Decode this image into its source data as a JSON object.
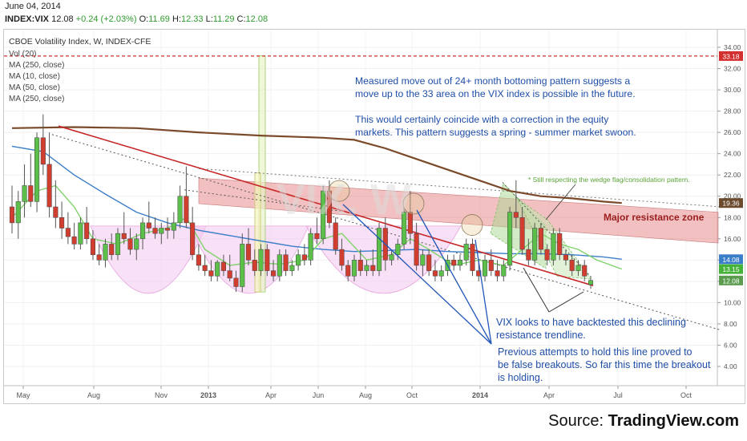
{
  "header": {
    "date": "June 04, 2014",
    "symbol": "INDEX:VIX",
    "last": "12.08",
    "change": "+0.24 (+2.03%)",
    "open_label": "O:",
    "open": "11.69",
    "high_label": "H:",
    "high": "12.33",
    "low_label": "L:",
    "low": "11.29",
    "close_label": "C:",
    "close": "12.08"
  },
  "legend": {
    "title": "CBOE Volatility Index, W, INDEX-CFE",
    "items": [
      "Vol (20)",
      "MA (250, close)",
      "MA (10, close)",
      "MA (50, close)",
      "MA (250, close)"
    ]
  },
  "annotations": {
    "measured_move": [
      "Measured move out of 24+ month bottoming pattern suggests a",
      "move up to the 33 area on the VIX index is possible in the future.",
      "",
      "This would certainly coincide with a correction in the equity",
      "markets. This pattern suggests a spring - summer market swoon."
    ],
    "wedge_note": "* Still respecting the wedge flag/consolidation pattern.",
    "resistance_zone": "Major resistance zone",
    "backtest": [
      "VIX looks to have backtested this declining",
      "resistance trendline."
    ],
    "previous_attempts": [
      "Previous attempts to hold this line proved to",
      "be false breakouts. So far this time the breakout",
      "is holding."
    ]
  },
  "source": {
    "prefix": "Source: ",
    "brand": "TradingView.com"
  },
  "colors": {
    "bull": "#5bbf4a",
    "bear": "#d13d2f",
    "ma250": "#7b4a2a",
    "ma50": "#3a7dc9",
    "ma10": "#7fd36a",
    "trendline": "#c62828",
    "zone": "#e88c8c",
    "annotation_text": "#1f4ea8",
    "arrow": "#2156b8"
  },
  "chart_data": {
    "type": "candlestick",
    "title": "CBOE Volatility Index, W, INDEX-CFE",
    "y_ticks": [
      "34.00",
      "32.00",
      "30.00",
      "28.00",
      "26.00",
      "24.00",
      "22.00",
      "20.00",
      "18.00",
      "16.00",
      "14.00",
      "12.00",
      "10.00",
      "8.00",
      "6.00",
      "4.00"
    ],
    "x_ticks": [
      "May",
      "Aug",
      "Nov",
      "2013",
      "Apr",
      "Jun",
      "Aug",
      "Oct",
      "2014",
      "Apr",
      "Jul",
      "Oct"
    ],
    "ylim": [
      2.5,
      35
    ],
    "price_labels": [
      {
        "value": 33.18,
        "text": "33.18",
        "color": "#d32f2f"
      },
      {
        "value": 19.36,
        "text": "19.36",
        "color": "#6b4a2e"
      },
      {
        "value": 14.08,
        "text": "14.08",
        "color": "#3a7dc9"
      },
      {
        "value": 13.15,
        "text": "13.15",
        "color": "#45b339"
      },
      {
        "value": 12.08,
        "text": "12.08",
        "color": "#5a9b4d"
      }
    ],
    "reference_line": {
      "value": 33.18,
      "style": "dashed",
      "color": "#d32f2f"
    },
    "candles": [
      {
        "o": 19.0,
        "h": 21.0,
        "l": 16.5,
        "c": 17.5
      },
      {
        "o": 17.5,
        "h": 20.5,
        "l": 16.0,
        "c": 19.5
      },
      {
        "o": 19.5,
        "h": 23.0,
        "l": 18.0,
        "c": 21.0
      },
      {
        "o": 21.0,
        "h": 24.0,
        "l": 19.0,
        "c": 19.5
      },
      {
        "o": 19.5,
        "h": 26.0,
        "l": 18.5,
        "c": 25.5
      },
      {
        "o": 25.5,
        "h": 27.7,
        "l": 22.0,
        "c": 23.0
      },
      {
        "o": 23.0,
        "h": 26.0,
        "l": 18.0,
        "c": 19.0
      },
      {
        "o": 19.0,
        "h": 21.5,
        "l": 17.0,
        "c": 18.0
      },
      {
        "o": 18.0,
        "h": 19.5,
        "l": 16.0,
        "c": 17.0
      },
      {
        "o": 17.0,
        "h": 18.5,
        "l": 15.5,
        "c": 16.2
      },
      {
        "o": 16.2,
        "h": 17.5,
        "l": 15.0,
        "c": 15.5
      },
      {
        "o": 15.5,
        "h": 18.0,
        "l": 15.0,
        "c": 17.5
      },
      {
        "o": 17.5,
        "h": 19.0,
        "l": 15.5,
        "c": 16.0
      },
      {
        "o": 16.0,
        "h": 16.8,
        "l": 14.0,
        "c": 14.5
      },
      {
        "o": 14.5,
        "h": 15.5,
        "l": 13.5,
        "c": 14.0
      },
      {
        "o": 14.0,
        "h": 16.0,
        "l": 13.3,
        "c": 15.5
      },
      {
        "o": 15.5,
        "h": 16.5,
        "l": 14.0,
        "c": 14.5
      },
      {
        "o": 14.5,
        "h": 17.0,
        "l": 14.0,
        "c": 16.5
      },
      {
        "o": 16.5,
        "h": 18.5,
        "l": 15.5,
        "c": 16.0
      },
      {
        "o": 16.0,
        "h": 17.0,
        "l": 14.5,
        "c": 15.0
      },
      {
        "o": 15.0,
        "h": 16.5,
        "l": 14.0,
        "c": 16.0
      },
      {
        "o": 16.0,
        "h": 18.0,
        "l": 15.0,
        "c": 17.5
      },
      {
        "o": 17.5,
        "h": 19.5,
        "l": 16.5,
        "c": 17.0
      },
      {
        "o": 17.0,
        "h": 18.0,
        "l": 16.0,
        "c": 16.5
      },
      {
        "o": 16.5,
        "h": 17.5,
        "l": 15.5,
        "c": 17.0
      },
      {
        "o": 17.0,
        "h": 18.0,
        "l": 16.0,
        "c": 16.8
      },
      {
        "o": 16.8,
        "h": 18.5,
        "l": 16.0,
        "c": 17.5
      },
      {
        "o": 17.5,
        "h": 21.0,
        "l": 17.0,
        "c": 20.0
      },
      {
        "o": 20.0,
        "h": 22.8,
        "l": 17.0,
        "c": 17.5
      },
      {
        "o": 17.5,
        "h": 19.0,
        "l": 14.0,
        "c": 14.5
      },
      {
        "o": 14.5,
        "h": 15.5,
        "l": 13.0,
        "c": 13.5
      },
      {
        "o": 13.5,
        "h": 14.5,
        "l": 12.5,
        "c": 13.0
      },
      {
        "o": 13.0,
        "h": 14.0,
        "l": 12.0,
        "c": 12.5
      },
      {
        "o": 12.5,
        "h": 14.0,
        "l": 12.0,
        "c": 13.8
      },
      {
        "o": 13.8,
        "h": 14.5,
        "l": 12.5,
        "c": 13.0
      },
      {
        "o": 13.0,
        "h": 14.5,
        "l": 12.0,
        "c": 12.3
      },
      {
        "o": 12.3,
        "h": 13.0,
        "l": 11.0,
        "c": 11.5
      },
      {
        "o": 11.5,
        "h": 16.5,
        "l": 11.0,
        "c": 15.5
      },
      {
        "o": 15.5,
        "h": 17.0,
        "l": 13.5,
        "c": 14.0
      },
      {
        "o": 14.0,
        "h": 15.0,
        "l": 12.5,
        "c": 13.0
      },
      {
        "o": 13.0,
        "h": 15.5,
        "l": 12.5,
        "c": 15.0
      },
      {
        "o": 15.0,
        "h": 15.5,
        "l": 12.5,
        "c": 13.0
      },
      {
        "o": 13.0,
        "h": 14.0,
        "l": 12.0,
        "c": 12.5
      },
      {
        "o": 12.5,
        "h": 15.0,
        "l": 12.0,
        "c": 14.5
      },
      {
        "o": 14.5,
        "h": 15.0,
        "l": 12.5,
        "c": 13.0
      },
      {
        "o": 13.0,
        "h": 14.0,
        "l": 12.5,
        "c": 13.5
      },
      {
        "o": 13.5,
        "h": 15.0,
        "l": 13.0,
        "c": 14.5
      },
      {
        "o": 14.5,
        "h": 15.5,
        "l": 13.5,
        "c": 14.0
      },
      {
        "o": 14.0,
        "h": 17.0,
        "l": 13.5,
        "c": 16.5
      },
      {
        "o": 16.5,
        "h": 18.0,
        "l": 15.5,
        "c": 16.0
      },
      {
        "o": 16.0,
        "h": 21.0,
        "l": 15.5,
        "c": 20.5
      },
      {
        "o": 20.5,
        "h": 21.5,
        "l": 17.0,
        "c": 17.5
      },
      {
        "o": 17.5,
        "h": 18.0,
        "l": 14.5,
        "c": 15.0
      },
      {
        "o": 15.0,
        "h": 16.0,
        "l": 13.0,
        "c": 13.5
      },
      {
        "o": 13.5,
        "h": 14.0,
        "l": 12.0,
        "c": 12.5
      },
      {
        "o": 12.5,
        "h": 14.5,
        "l": 12.0,
        "c": 14.0
      },
      {
        "o": 14.0,
        "h": 15.0,
        "l": 12.5,
        "c": 13.0
      },
      {
        "o": 13.0,
        "h": 14.0,
        "l": 12.5,
        "c": 13.5
      },
      {
        "o": 13.5,
        "h": 15.0,
        "l": 12.5,
        "c": 13.0
      },
      {
        "o": 13.0,
        "h": 17.5,
        "l": 12.5,
        "c": 17.0
      },
      {
        "o": 17.0,
        "h": 18.0,
        "l": 13.0,
        "c": 14.0
      },
      {
        "o": 14.0,
        "h": 15.0,
        "l": 13.5,
        "c": 14.5
      },
      {
        "o": 14.5,
        "h": 16.0,
        "l": 14.0,
        "c": 15.5
      },
      {
        "o": 15.5,
        "h": 19.0,
        "l": 15.0,
        "c": 18.5
      },
      {
        "o": 18.5,
        "h": 20.5,
        "l": 15.5,
        "c": 16.5
      },
      {
        "o": 16.5,
        "h": 17.5,
        "l": 13.0,
        "c": 13.5
      },
      {
        "o": 13.5,
        "h": 15.0,
        "l": 12.5,
        "c": 14.5
      },
      {
        "o": 14.5,
        "h": 15.0,
        "l": 12.5,
        "c": 13.0
      },
      {
        "o": 13.0,
        "h": 14.0,
        "l": 12.0,
        "c": 12.5
      },
      {
        "o": 12.5,
        "h": 13.5,
        "l": 12.0,
        "c": 13.0
      },
      {
        "o": 13.0,
        "h": 14.5,
        "l": 12.5,
        "c": 14.0
      },
      {
        "o": 14.0,
        "h": 14.5,
        "l": 13.0,
        "c": 13.5
      },
      {
        "o": 13.5,
        "h": 14.5,
        "l": 13.0,
        "c": 14.0
      },
      {
        "o": 14.0,
        "h": 16.0,
        "l": 13.5,
        "c": 15.5
      },
      {
        "o": 15.5,
        "h": 16.0,
        "l": 12.5,
        "c": 13.0
      },
      {
        "o": 13.0,
        "h": 14.0,
        "l": 12.0,
        "c": 12.5
      },
      {
        "o": 12.5,
        "h": 14.5,
        "l": 12.0,
        "c": 14.0
      },
      {
        "o": 14.0,
        "h": 15.0,
        "l": 12.5,
        "c": 13.0
      },
      {
        "o": 13.0,
        "h": 14.0,
        "l": 12.0,
        "c": 12.5
      },
      {
        "o": 12.5,
        "h": 14.0,
        "l": 12.0,
        "c": 13.5
      },
      {
        "o": 13.5,
        "h": 19.0,
        "l": 13.0,
        "c": 18.5
      },
      {
        "o": 18.5,
        "h": 21.5,
        "l": 17.0,
        "c": 18.0
      },
      {
        "o": 18.0,
        "h": 19.0,
        "l": 14.5,
        "c": 15.0
      },
      {
        "o": 15.0,
        "h": 16.0,
        "l": 13.5,
        "c": 14.0
      },
      {
        "o": 14.0,
        "h": 17.5,
        "l": 13.5,
        "c": 17.0
      },
      {
        "o": 17.0,
        "h": 17.5,
        "l": 14.5,
        "c": 15.0
      },
      {
        "o": 15.0,
        "h": 15.5,
        "l": 13.5,
        "c": 14.0
      },
      {
        "o": 14.0,
        "h": 17.0,
        "l": 13.5,
        "c": 16.5
      },
      {
        "o": 16.5,
        "h": 17.0,
        "l": 14.0,
        "c": 14.5
      },
      {
        "o": 14.5,
        "h": 15.0,
        "l": 13.5,
        "c": 14.0
      },
      {
        "o": 14.0,
        "h": 14.5,
        "l": 12.5,
        "c": 13.0
      },
      {
        "o": 13.0,
        "h": 14.0,
        "l": 12.5,
        "c": 13.5
      },
      {
        "o": 13.5,
        "h": 14.0,
        "l": 12.0,
        "c": 12.5
      },
      {
        "o": 11.69,
        "h": 12.33,
        "l": 11.29,
        "c": 12.08
      }
    ],
    "x_start": "2012-04-30",
    "x_end": "2014-11-10",
    "series": [
      {
        "name": "MA (250, close)",
        "color": "#7b4a2a",
        "points": [
          [
            0,
            26.4
          ],
          [
            10,
            26.5
          ],
          [
            20,
            26.4
          ],
          [
            30,
            26.0
          ],
          [
            40,
            25.7
          ],
          [
            50,
            25.5
          ],
          [
            55,
            25.3
          ],
          [
            60,
            24.5
          ],
          [
            65,
            23.5
          ],
          [
            70,
            22.5
          ],
          [
            75,
            21.5
          ],
          [
            80,
            20.5
          ],
          [
            85,
            20.0
          ],
          [
            90,
            19.8
          ],
          [
            95,
            19.5
          ],
          [
            98,
            19.36
          ]
        ]
      },
      {
        "name": "MA (50, close)",
        "color": "#3a7dc9",
        "points": [
          [
            0,
            24.7
          ],
          [
            5,
            24.2
          ],
          [
            10,
            22.0
          ],
          [
            15,
            20.2
          ],
          [
            20,
            18.5
          ],
          [
            25,
            17.5
          ],
          [
            30,
            16.8
          ],
          [
            35,
            16.3
          ],
          [
            40,
            15.8
          ],
          [
            45,
            15.3
          ],
          [
            50,
            15.0
          ],
          [
            55,
            14.8
          ],
          [
            60,
            14.9
          ],
          [
            65,
            15.0
          ],
          [
            70,
            14.8
          ],
          [
            75,
            14.7
          ],
          [
            80,
            14.6
          ],
          [
            85,
            14.6
          ],
          [
            90,
            14.5
          ],
          [
            95,
            14.3
          ],
          [
            98,
            14.08
          ]
        ]
      },
      {
        "name": "MA (10, close)",
        "color": "#7fd36a",
        "points": [
          [
            0,
            18.0
          ],
          [
            4,
            20.5
          ],
          [
            7,
            21.0
          ],
          [
            10,
            19.0
          ],
          [
            13,
            16.0
          ],
          [
            17,
            15.5
          ],
          [
            21,
            16.5
          ],
          [
            25,
            17.0
          ],
          [
            28,
            18.0
          ],
          [
            31,
            15.0
          ],
          [
            35,
            13.5
          ],
          [
            39,
            13.8
          ],
          [
            43,
            13.6
          ],
          [
            47,
            14.0
          ],
          [
            50,
            16.0
          ],
          [
            53,
            16.5
          ],
          [
            57,
            14.0
          ],
          [
            61,
            14.5
          ],
          [
            64,
            16.0
          ],
          [
            67,
            15.0
          ],
          [
            71,
            13.5
          ],
          [
            75,
            14.0
          ],
          [
            79,
            13.5
          ],
          [
            82,
            15.0
          ],
          [
            85,
            16.5
          ],
          [
            88,
            15.5
          ],
          [
            91,
            15.0
          ],
          [
            94,
            14.0
          ],
          [
            98,
            13.15
          ]
        ]
      }
    ]
  }
}
